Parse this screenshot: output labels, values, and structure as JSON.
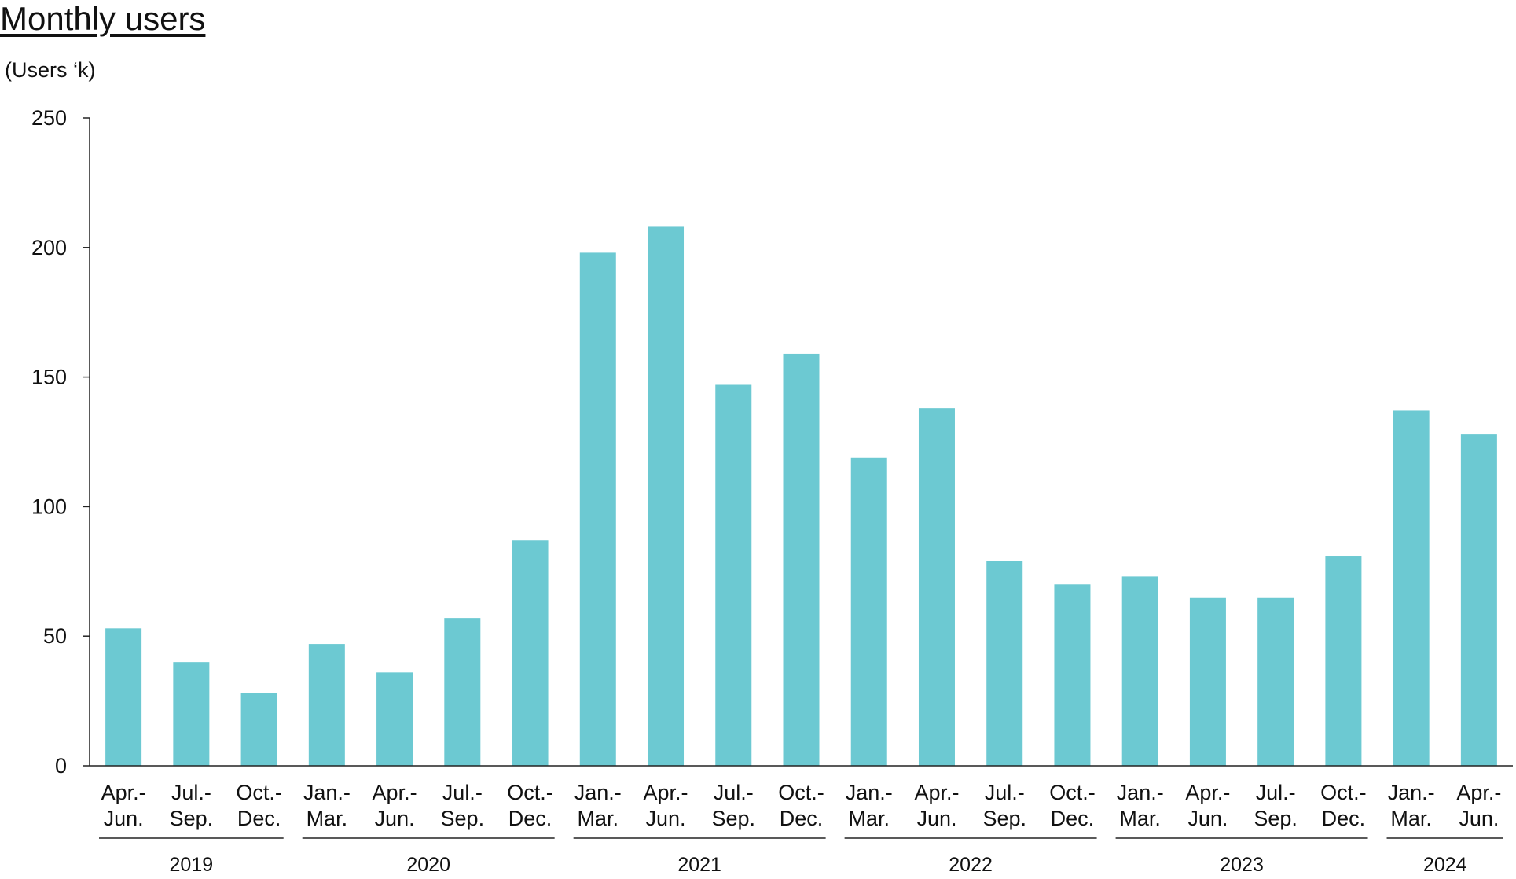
{
  "chart_data": {
    "type": "bar",
    "title": "Monthly users",
    "ylabel": "(Users ‘k)",
    "xlabel": "",
    "ylim": [
      0,
      250
    ],
    "yticks": [
      0,
      50,
      100,
      150,
      200,
      250
    ],
    "color": "#6CC9D2",
    "categories": [
      [
        "Apr.-",
        "Jun."
      ],
      [
        "Jul.-",
        "Sep."
      ],
      [
        "Oct.-",
        "Dec."
      ],
      [
        "Jan.-",
        "Mar."
      ],
      [
        "Apr.-",
        "Jun."
      ],
      [
        "Jul.-",
        "Sep."
      ],
      [
        "Oct.-",
        "Dec."
      ],
      [
        "Jan.-",
        "Mar."
      ],
      [
        "Apr.-",
        "Jun."
      ],
      [
        "Jul.-",
        "Sep."
      ],
      [
        "Oct.-",
        "Dec."
      ],
      [
        "Jan.-",
        "Mar."
      ],
      [
        "Apr.-",
        "Jun."
      ],
      [
        "Jul.-",
        "Sep."
      ],
      [
        "Oct.-",
        "Dec."
      ],
      [
        "Jan.-",
        "Mar."
      ],
      [
        "Apr.-",
        "Jun."
      ],
      [
        "Jul.-",
        "Sep."
      ],
      [
        "Oct.-",
        "Dec."
      ],
      [
        "Jan.-",
        "Mar."
      ],
      [
        "Apr.-",
        "Jun."
      ]
    ],
    "values": [
      53,
      40,
      28,
      47,
      36,
      57,
      87,
      198,
      208,
      147,
      159,
      119,
      138,
      79,
      70,
      73,
      65,
      65,
      81,
      137,
      128
    ],
    "year_groups": [
      {
        "label": "2019",
        "start": 0,
        "end": 2
      },
      {
        "label": "2020",
        "start": 3,
        "end": 6
      },
      {
        "label": "2021",
        "start": 7,
        "end": 10
      },
      {
        "label": "2022",
        "start": 11,
        "end": 14
      },
      {
        "label": "2023",
        "start": 15,
        "end": 18
      },
      {
        "label": "2024",
        "start": 19,
        "end": 20
      }
    ]
  }
}
